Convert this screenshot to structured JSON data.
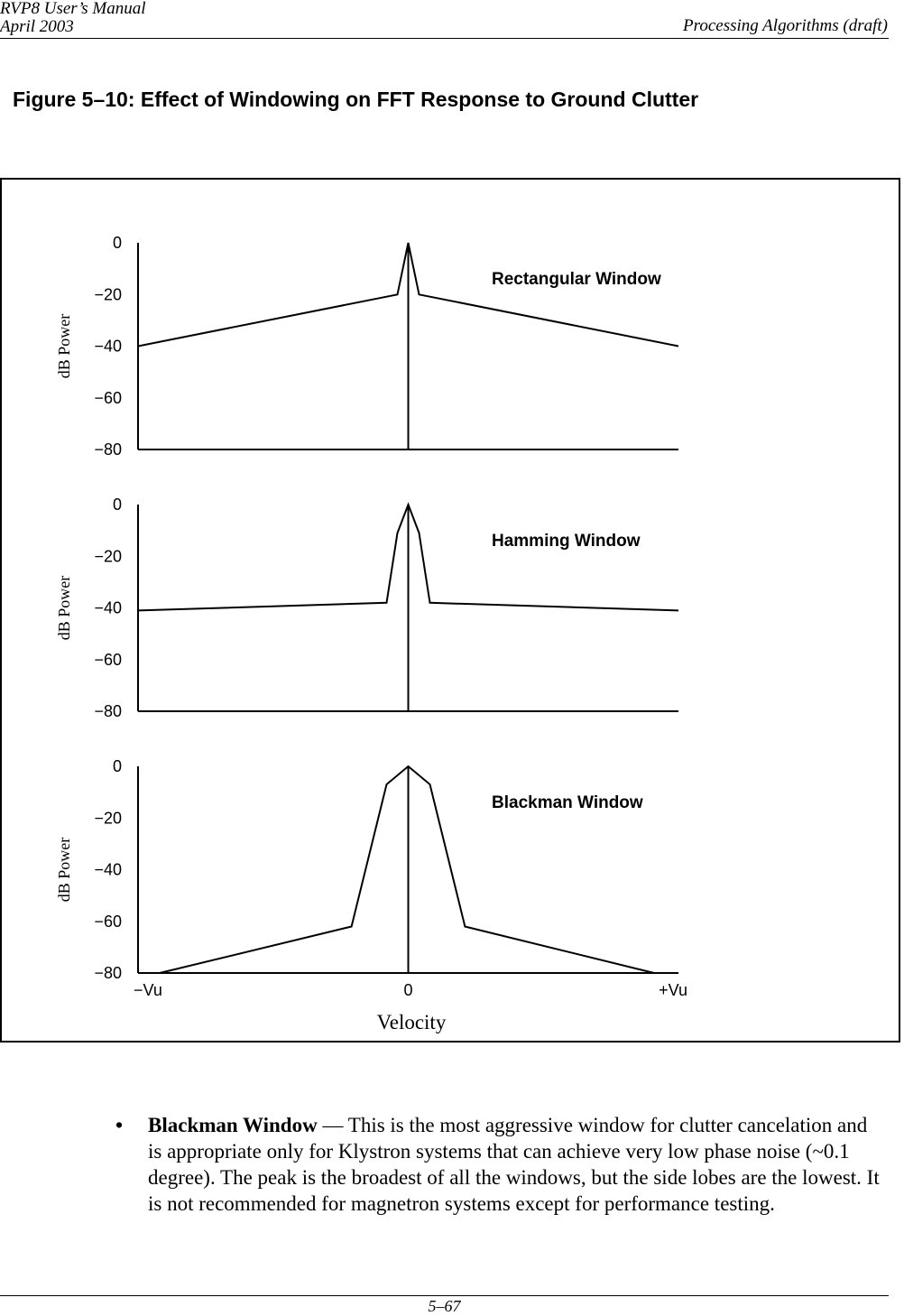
{
  "header": {
    "manual": "RVP8 User’s Manual",
    "date": "April 2003",
    "section": "Processing Algorithms (draft)"
  },
  "figure": {
    "title": "Figure 5–10: Effect of Windowing on FFT Response to Ground Clutter"
  },
  "chart_data": {
    "type": "line",
    "title": "Effect of Windowing on FFT Response to Ground Clutter",
    "xlabel": "Velocity",
    "ylabel": "dB Power",
    "x_ticks": [
      "−Vu",
      "0",
      "+Vu"
    ],
    "xlim": [
      -1,
      1
    ],
    "y_ticks": [
      0,
      -20,
      -40,
      -60,
      -80
    ],
    "y_tick_labels": [
      "0",
      "−20",
      "−40",
      "−60",
      "−80"
    ],
    "ylim": [
      -80,
      0
    ],
    "panels": [
      {
        "name": "Rectangular Window",
        "x": [
          -1,
          -0.04,
          0,
          0.04,
          1
        ],
        "y": [
          -40,
          -20,
          0,
          -20,
          -40
        ]
      },
      {
        "name": "Hamming Window",
        "x": [
          -1,
          -0.08,
          -0.04,
          0,
          0.04,
          0.08,
          1
        ],
        "y": [
          -41,
          -38,
          -11,
          0,
          -11,
          -38,
          -41
        ]
      },
      {
        "name": "Blackman Window",
        "x": [
          -0.92,
          -0.21,
          -0.08,
          0,
          0.08,
          0.21,
          0.91
        ],
        "y": [
          -80,
          -62,
          -7,
          0,
          -7,
          -62,
          -80
        ]
      }
    ]
  },
  "body": {
    "bullet": "•",
    "term": "Blackman Window",
    "text": " — This is the most aggressive window for clutter cancelation and is appropriate only for Klystron systems that can achieve very low phase noise (~0.1 degree). The peak is the broadest of all the windows, but the side lobes are the lowest. It is not recommended for magnetron systems except for performance testing."
  },
  "footer": {
    "page": "5–67"
  }
}
